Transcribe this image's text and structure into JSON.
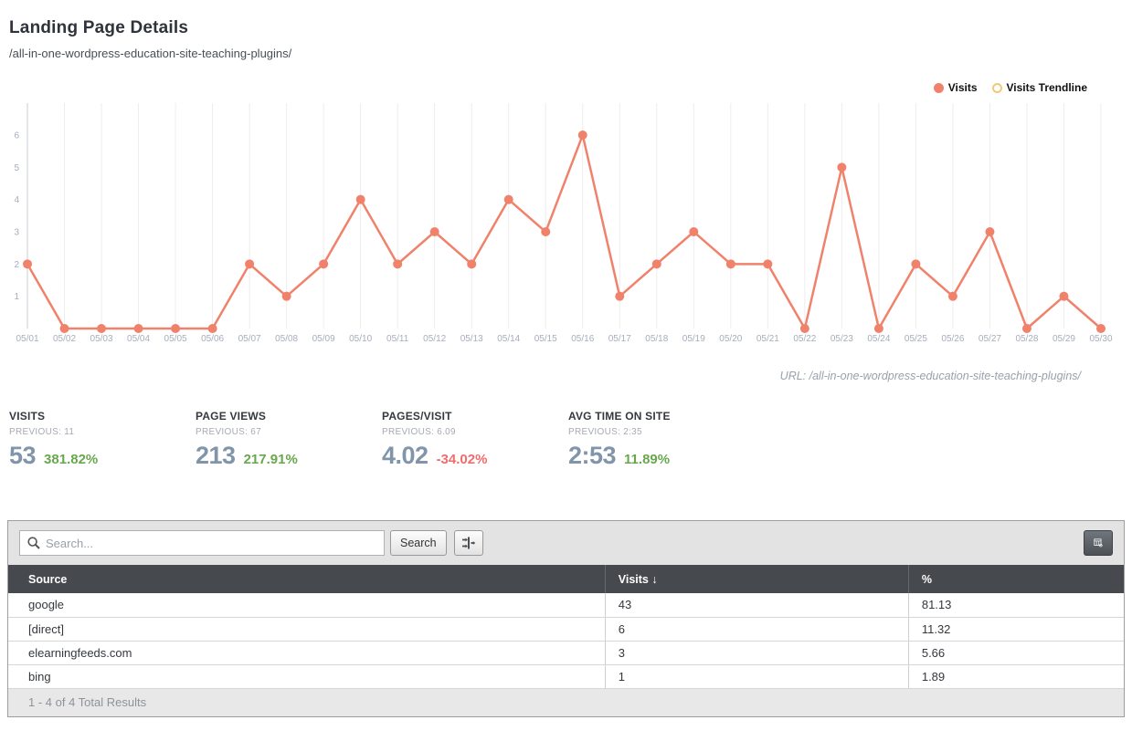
{
  "page": {
    "title": "Landing Page Details",
    "subtitle": "/all-in-one-wordpress-education-site-teaching-plugins/"
  },
  "legend": [
    {
      "label": "Visits",
      "color": "#f0826b",
      "filled": true
    },
    {
      "label": "Visits Trendline",
      "color": "#f3c876",
      "filled": false
    }
  ],
  "chart_data": {
    "type": "line",
    "x": [
      "05/01",
      "05/02",
      "05/03",
      "05/04",
      "05/05",
      "05/06",
      "05/07",
      "05/08",
      "05/09",
      "05/10",
      "05/11",
      "05/12",
      "05/13",
      "05/14",
      "05/15",
      "05/16",
      "05/17",
      "05/18",
      "05/19",
      "05/20",
      "05/21",
      "05/22",
      "05/23",
      "05/24",
      "05/25",
      "05/26",
      "05/27",
      "05/28",
      "05/29",
      "05/30"
    ],
    "series": [
      {
        "name": "Visits",
        "color": "#f0826b",
        "values": [
          2,
          0,
          0,
          0,
          0,
          0,
          2,
          1,
          2,
          4,
          2,
          3,
          2,
          4,
          3,
          6,
          1,
          2,
          3,
          2,
          2,
          0,
          5,
          0,
          2,
          1,
          3,
          0,
          1,
          0
        ]
      }
    ],
    "legend": [
      "Visits",
      "Visits Trendline"
    ],
    "legend_position": "top-right",
    "ylim": [
      0,
      7
    ],
    "yticks": [
      1,
      2,
      3,
      4,
      5,
      6
    ],
    "grid": "vertical-only",
    "caption": "URL: /all-in-one-wordpress-education-site-teaching-plugins/"
  },
  "stats": [
    {
      "label": "VISITS",
      "previous": "PREVIOUS: 11",
      "value": "53",
      "delta": "381.82%",
      "delta_color": "#69a74e"
    },
    {
      "label": "PAGE VIEWS",
      "previous": "PREVIOUS: 67",
      "value": "213",
      "delta": "217.91%",
      "delta_color": "#69a74e"
    },
    {
      "label": "PAGES/VISIT",
      "previous": "PREVIOUS: 6.09",
      "value": "4.02",
      "delta": "-34.02%",
      "delta_color": "#f26c6c"
    },
    {
      "label": "AVG TIME ON SITE",
      "previous": "PREVIOUS: 2:35",
      "value": "2:53",
      "delta": "11.89%",
      "delta_color": "#69a74e"
    }
  ],
  "table": {
    "search_placeholder": "Search...",
    "search_button": "Search",
    "icons": [
      "search-icon",
      "filter-columns-icon",
      "table-settings-icon"
    ],
    "columns": [
      "Source",
      "Visits ↓",
      "%"
    ],
    "rows": [
      [
        "google",
        "43",
        "81.13"
      ],
      [
        "[direct]",
        "6",
        "11.32"
      ],
      [
        "elearningfeeds.com",
        "3",
        "5.66"
      ],
      [
        "bing",
        "1",
        "1.89"
      ]
    ],
    "footer": "1 - 4 of 4 Total Results"
  },
  "colors": {
    "accent_line": "#f0826b",
    "trendline": "#f3c876",
    "stat_value": "#8195aa",
    "positive": "#69a74e",
    "negative": "#f26c6c",
    "table_header_bg": "#46494e",
    "toolbar_bg": "#e3e3e3"
  }
}
